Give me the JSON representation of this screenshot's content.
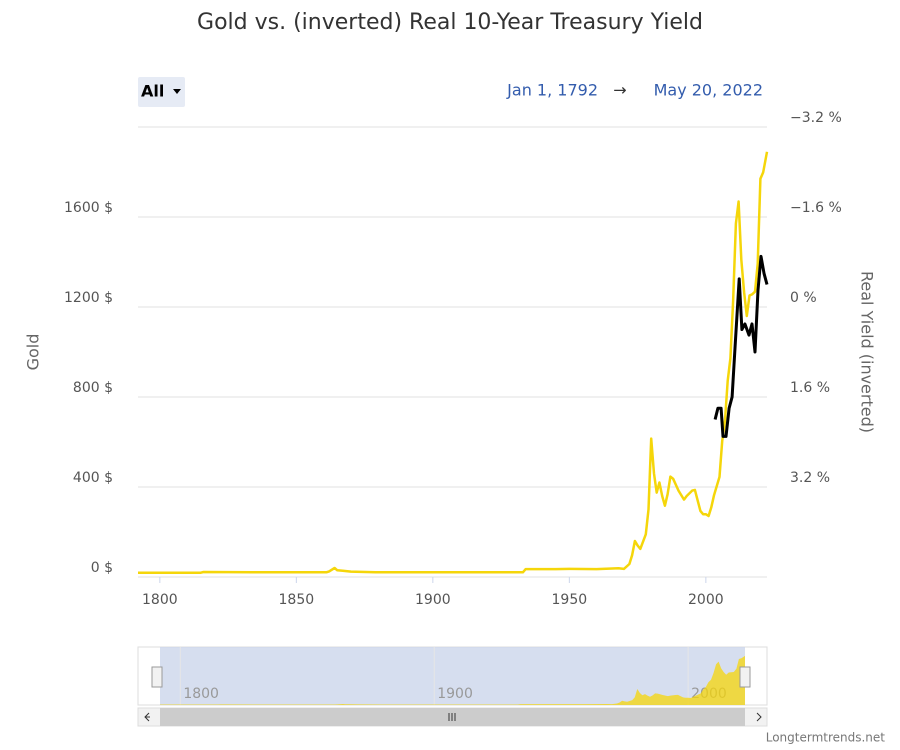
{
  "chart_data": {
    "type": "line",
    "title": "Gold vs. (inverted) Real 10-Year Treasury Yield",
    "range_selector": "All",
    "date_range": {
      "start": "Jan 1, 1792",
      "arrow": "→",
      "end": "May 20, 2022"
    },
    "credit": "Longtermtrends.net",
    "xlim": [
      1792,
      2022.4
    ],
    "xticks": [
      1800,
      1850,
      1900,
      1950,
      2000
    ],
    "ylim": [
      0,
      2000
    ],
    "yticks": [
      {
        "value": 0,
        "label": "0 $"
      },
      {
        "value": 400,
        "label": "400 $"
      },
      {
        "value": 800,
        "label": "800 $"
      },
      {
        "value": 1200,
        "label": "1200 $"
      },
      {
        "value": 1600,
        "label": "1600 $"
      }
    ],
    "y2lim": [
      4.8,
      -3.2
    ],
    "y2ticks": [
      {
        "value": -3.2,
        "label": "−3.2 %"
      },
      {
        "value": -1.6,
        "label": "−1.6 %"
      },
      {
        "value": 0,
        "label": "0 %"
      },
      {
        "value": 1.6,
        "label": "1.6 %"
      },
      {
        "value": 3.2,
        "label": "3.2 %"
      }
    ],
    "grid": true,
    "series": [
      {
        "name": "Gold",
        "color": "#f5d60a",
        "x": [
          1792,
          1800,
          1815,
          1816,
          1834,
          1850,
          1861,
          1862,
          1864,
          1865,
          1867,
          1870,
          1879,
          1900,
          1920,
          1933,
          1934,
          1945,
          1950,
          1960,
          1968,
          1970,
          1972,
          1973,
          1974,
          1975,
          1976,
          1978,
          1979,
          1980,
          1981,
          1982,
          1983,
          1984,
          1985,
          1986,
          1987,
          1988,
          1990,
          1992,
          1993,
          1995,
          1996,
          1998,
          1999,
          2000,
          2001,
          2002,
          2003,
          2005,
          2006,
          2007,
          2008,
          2009,
          2010,
          2011,
          2012,
          2013,
          2014,
          2015,
          2016,
          2017,
          2018,
          2019,
          2020,
          2021,
          2022.4
        ],
        "values": [
          19,
          19,
          19,
          22,
          20.67,
          20.67,
          20.67,
          25,
          40,
          30,
          28,
          24,
          20.67,
          20.67,
          20.67,
          20.67,
          35,
          35,
          36,
          35,
          39,
          36,
          58,
          97,
          160,
          140,
          125,
          190,
          300,
          615,
          460,
          375,
          420,
          360,
          317,
          368,
          446,
          437,
          384,
          344,
          360,
          384,
          387,
          294,
          279,
          279,
          271,
          310,
          363,
          445,
          604,
          696,
          872,
          972,
          1225,
          1571,
          1669,
          1411,
          1266,
          1160,
          1251,
          1257,
          1268,
          1392,
          1770,
          1799,
          1890
        ]
      },
      {
        "name": "Real Yield (inverted)",
        "color": "#000000",
        "axis": "y2",
        "x": [
          2003.4,
          2004.4,
          2005.6,
          2006.3,
          2007.4,
          2008.5,
          2009.6,
          2010.7,
          2012.2,
          2013.2,
          2014.3,
          2015.8,
          2016.9,
          2018,
          2019.1,
          2020.2,
          2021.3,
          2022.4
        ],
        "values": [
          2.0,
          1.8,
          1.8,
          2.3,
          2.3,
          1.8,
          1.6,
          0.7,
          -0.5,
          0.4,
          0.3,
          0.5,
          0.3,
          0.8,
          -0.3,
          -0.9,
          -0.6,
          -0.4
        ]
      }
    ]
  }
}
